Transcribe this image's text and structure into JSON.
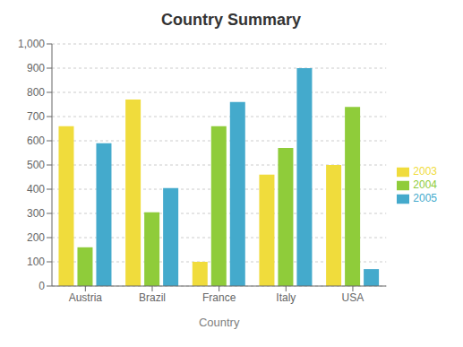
{
  "chart_data": {
    "type": "bar",
    "title": "Country Summary",
    "xlabel": "Country",
    "categories": [
      "Austria",
      "Brazil",
      "France",
      "Italy",
      "USA"
    ],
    "series": [
      {
        "name": "2003",
        "color": "#F0DC3C",
        "values": [
          660,
          770,
          100,
          460,
          500
        ]
      },
      {
        "name": "2004",
        "color": "#8FCC3A",
        "values": [
          160,
          305,
          660,
          570,
          740
        ]
      },
      {
        "name": "2005",
        "color": "#44AACC",
        "values": [
          590,
          405,
          760,
          900,
          70
        ]
      }
    ],
    "ylim": [
      0,
      1000
    ],
    "yticks": [
      0,
      100,
      200,
      300,
      400,
      500,
      600,
      700,
      800,
      900,
      {
        "value": 1000,
        "label": "1,000"
      }
    ],
    "grid": "y",
    "legend": "right"
  }
}
